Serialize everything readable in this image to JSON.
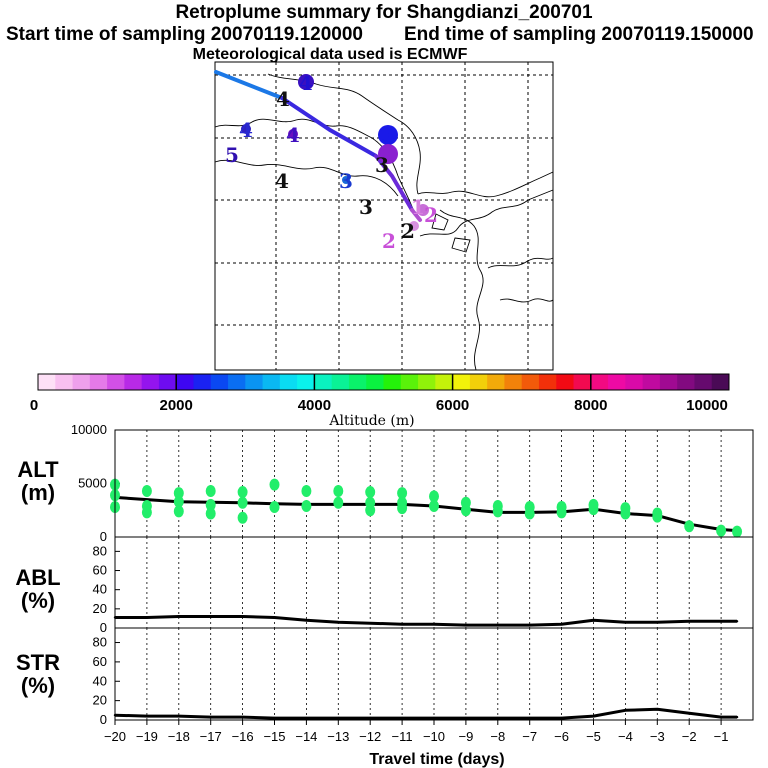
{
  "header": {
    "title": "Retroplume summary for Shangdianzi_200701",
    "start": "Start time of sampling 20070119.120000",
    "end": "End time of sampling 20070119.150000",
    "met": "Meteorological data used is ECMWF"
  },
  "colorbar": {
    "label": "Altitude (m)",
    "ticks": [
      "0",
      "2000",
      "4000",
      "6000",
      "8000",
      "10000"
    ],
    "colors": [
      "#fde0f6",
      "#f8c0f0",
      "#eea0ec",
      "#e47ae8",
      "#d250e6",
      "#b82ae6",
      "#9414ee",
      "#6e0cf0",
      "#3e06f2",
      "#1a22f2",
      "#0a48f2",
      "#0a6ef2",
      "#0a94f2",
      "#0ab8f2",
      "#0adcf2",
      "#0af2ec",
      "#0af2c0",
      "#0af296",
      "#0af26a",
      "#0af240",
      "#24f20a",
      "#5af20a",
      "#90f20a",
      "#c4f20a",
      "#f2f20a",
      "#f2d00a",
      "#f2aa0a",
      "#f2820a",
      "#f25a0a",
      "#f2300a",
      "#f20a14",
      "#f20a50",
      "#f20a82",
      "#ee0aa4",
      "#da0aa8",
      "#c00aa0",
      "#a00a92",
      "#820a80",
      "#660a6e",
      "#4a0a56"
    ]
  },
  "map": {
    "labels": [
      {
        "text": "4",
        "color": "#2010d0"
      },
      {
        "text": "4",
        "color": "#101010"
      },
      {
        "text": "4",
        "color": "#2828d0"
      },
      {
        "text": "4",
        "color": "#4010c0"
      },
      {
        "text": "5",
        "color": "#3010b0"
      },
      {
        "text": "4",
        "color": "#101010"
      },
      {
        "text": "3",
        "color": "#1a1ae8"
      },
      {
        "text": "3",
        "color": "#8a20d0"
      },
      {
        "text": "3",
        "color": "#101010"
      },
      {
        "text": "3",
        "color": "#1a3ad0"
      },
      {
        "text": "3",
        "color": "#101010"
      },
      {
        "text": "2",
        "color": "#c850d8"
      },
      {
        "text": "2",
        "color": "#101010"
      },
      {
        "text": "2",
        "color": "#c850d8"
      },
      {
        "text": "1",
        "color": "#d880e0"
      }
    ]
  },
  "panels": {
    "alt": {
      "line1": "ALT",
      "line2": "(m)"
    },
    "abl": {
      "line1": "ABL",
      "line2": "(%)"
    },
    "str": {
      "line1": "STR",
      "line2": "(%)"
    }
  },
  "xaxis_label": "Travel time (days)",
  "chart_data": [
    {
      "type": "line",
      "title": "ALT (m)",
      "xlabel": "Travel time (days)",
      "ylabel": "ALT (m)",
      "xlim": [
        -20,
        0
      ],
      "ylim": [
        0,
        10000
      ],
      "yticks": [
        0,
        5000,
        10000
      ],
      "x": [
        -20,
        -19,
        -18,
        -17,
        -16,
        -15,
        -14,
        -13,
        -12,
        -11,
        -10,
        -9,
        -8,
        -7,
        -6,
        -5,
        -4,
        -3,
        -2,
        -1,
        -0.5
      ],
      "series": [
        {
          "name": "mean altitude",
          "color": "#000000",
          "values": [
            3700,
            3500,
            3300,
            3250,
            3200,
            3100,
            3050,
            3050,
            3050,
            3050,
            2900,
            2600,
            2300,
            2300,
            2350,
            2600,
            2200,
            2000,
            1200,
            700,
            600
          ]
        },
        {
          "name": "altitude spread",
          "color": "#22ee6a",
          "type": "scatter",
          "points": [
            [
              -20,
              3900
            ],
            [
              -20,
              2800
            ],
            [
              -20,
              4900
            ],
            [
              -19,
              2900
            ],
            [
              -19,
              2300
            ],
            [
              -19,
              4300
            ],
            [
              -18,
              3300
            ],
            [
              -18,
              2400
            ],
            [
              -18,
              4100
            ],
            [
              -17,
              3000
            ],
            [
              -17,
              2200
            ],
            [
              -17,
              4300
            ],
            [
              -16,
              3200
            ],
            [
              -16,
              1800
            ],
            [
              -16,
              4200
            ],
            [
              -15,
              2800
            ],
            [
              -15,
              4900
            ],
            [
              -14,
              2900
            ],
            [
              -14,
              4300
            ],
            [
              -13,
              3200
            ],
            [
              -13,
              4300
            ],
            [
              -12,
              3200
            ],
            [
              -12,
              2500
            ],
            [
              -12,
              4200
            ],
            [
              -11,
              3200
            ],
            [
              -11,
              2700
            ],
            [
              -11,
              4100
            ],
            [
              -10,
              2900
            ],
            [
              -10,
              3800
            ],
            [
              -9,
              2500
            ],
            [
              -9,
              3200
            ],
            [
              -8,
              2400
            ],
            [
              -8,
              2900
            ],
            [
              -7,
              2200
            ],
            [
              -7,
              2800
            ],
            [
              -6,
              2300
            ],
            [
              -6,
              2800
            ],
            [
              -5,
              2600
            ],
            [
              -5,
              3000
            ],
            [
              -4,
              2200
            ],
            [
              -4,
              2700
            ],
            [
              -3,
              1900
            ],
            [
              -3,
              2200
            ],
            [
              -2,
              1000
            ],
            [
              -1,
              600
            ],
            [
              -0.5,
              500
            ]
          ]
        }
      ]
    },
    {
      "type": "line",
      "title": "ABL (%)",
      "xlabel": "Travel time (days)",
      "ylabel": "ABL (%)",
      "xlim": [
        -20,
        0
      ],
      "ylim": [
        0,
        95
      ],
      "yticks": [
        0,
        20,
        40,
        60,
        80
      ],
      "x": [
        -20,
        -19,
        -18,
        -17,
        -16,
        -15,
        -14,
        -13,
        -12,
        -11,
        -10,
        -9,
        -8,
        -7,
        -6,
        -5,
        -4,
        -3,
        -2,
        -1,
        -0.5
      ],
      "series": [
        {
          "name": "ABL",
          "color": "#000000",
          "values": [
            11,
            11,
            12,
            12,
            12,
            11,
            8,
            6,
            5,
            4,
            4,
            3,
            3,
            3,
            4,
            8,
            6,
            6,
            7,
            7,
            7
          ]
        }
      ]
    },
    {
      "type": "line",
      "title": "STR (%)",
      "xlabel": "Travel time (days)",
      "ylabel": "STR (%)",
      "xlim": [
        -20,
        0
      ],
      "ylim": [
        0,
        95
      ],
      "yticks": [
        0,
        20,
        40,
        60,
        80
      ],
      "xticks": [
        -20,
        -19,
        -18,
        -17,
        -16,
        -15,
        -14,
        -13,
        -12,
        -11,
        -10,
        -9,
        -8,
        -7,
        -6,
        -5,
        -4,
        -3,
        -2,
        -1
      ],
      "x": [
        -20,
        -19,
        -18,
        -17,
        -16,
        -15,
        -14,
        -13,
        -12,
        -11,
        -10,
        -9,
        -8,
        -7,
        -6,
        -5,
        -4,
        -3,
        -2,
        -1,
        -0.5
      ],
      "series": [
        {
          "name": "STR",
          "color": "#000000",
          "values": [
            5,
            4,
            4,
            3,
            3,
            2,
            2,
            2,
            2,
            2,
            2,
            2,
            2,
            2,
            2,
            4,
            10,
            11,
            7,
            3,
            3
          ]
        }
      ]
    }
  ]
}
